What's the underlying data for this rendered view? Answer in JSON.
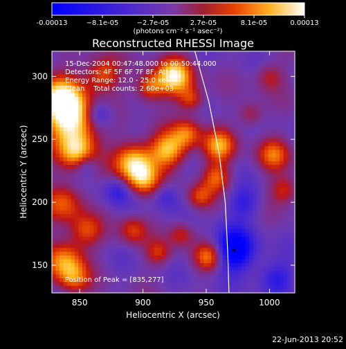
{
  "chart_data": {
    "type": "heatmap",
    "title": "Reconstructed RHESSI Image",
    "xlabel": "Heliocentric X (arcsec)",
    "ylabel": "Heliocentric Y (arcsec)",
    "xlim": [
      828,
      1020
    ],
    "ylim": [
      128,
      320
    ],
    "x_ticks": [
      "850",
      "900",
      "950",
      "1000"
    ],
    "y_ticks": [
      "150",
      "200",
      "250",
      "300"
    ],
    "colorbar": {
      "ticks": [
        "-0.00013",
        "−8.1e-05",
        "−2.7e-05",
        "2.7e-05",
        "8.1e-05",
        "0.00013"
      ],
      "label": "(photons cm⁻² s⁻¹ asec⁻²)",
      "range": [
        -0.00013,
        0.00013
      ]
    },
    "annotations": [
      "15-Dec-2004 00:47:48.000 to 00:50:44.000",
      "Detectors: 4F 5F 6F 7F 8F, Att 0",
      "Energy Range: 12.0 - 25.0 keV",
      "Clean    Total counts: 2.60e+03"
    ],
    "peak_label": "Position of Peak = [835,277]",
    "peak": [
      835,
      277
    ],
    "marker": [
      972,
      162
    ],
    "limb_curve": [
      [
        941,
        320
      ],
      [
        952,
        280
      ],
      [
        960,
        240
      ],
      [
        965,
        200
      ],
      [
        967,
        160
      ],
      [
        968,
        128
      ]
    ]
  },
  "footer": {
    "timestamp": "22-Jun-2013 20:52"
  },
  "colors": {
    "background": "#000000",
    "text": "#ffffff",
    "colormap": [
      "#0000ff",
      "#5a2ec8",
      "#7a3aa8",
      "#b02020",
      "#e85000",
      "#ffc020",
      "#ffffff"
    ]
  }
}
